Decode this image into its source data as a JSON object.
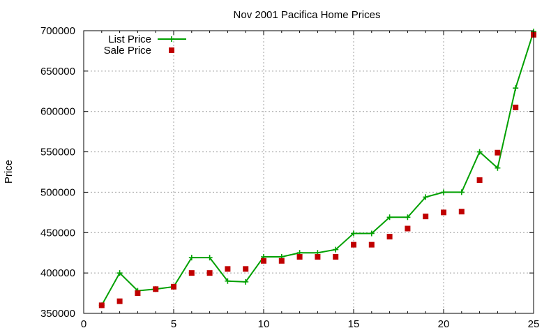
{
  "chart_data": {
    "type": "line",
    "title": "Nov 2001 Pacifica Home Prices",
    "xlabel": "",
    "ylabel": "Price",
    "xlim": [
      0,
      25
    ],
    "ylim": [
      350000,
      700000
    ],
    "x_ticks": [
      "0",
      "5",
      "10",
      "15",
      "20",
      "25"
    ],
    "y_ticks": [
      "350000",
      "400000",
      "450000",
      "500000",
      "550000",
      "600000",
      "650000",
      "700000"
    ],
    "grid": true,
    "legend_position": "top-left",
    "x": [
      1,
      2,
      3,
      4,
      5,
      6,
      7,
      8,
      9,
      10,
      11,
      12,
      13,
      14,
      15,
      16,
      17,
      18,
      19,
      20,
      21,
      22,
      23,
      24,
      25
    ],
    "series": [
      {
        "name": "List Price",
        "style": "lines+markers",
        "marker": "plus",
        "color": "#00a000",
        "values": [
          360000,
          400000,
          378000,
          380000,
          383000,
          419000,
          419000,
          390000,
          389000,
          420000,
          420000,
          425000,
          425000,
          429000,
          449000,
          449000,
          469000,
          469000,
          494000,
          500000,
          500000,
          550000,
          530000,
          629000,
          699000
        ]
      },
      {
        "name": "Sale Price",
        "style": "markers",
        "marker": "square",
        "color": "#c00000",
        "values": [
          360000,
          365000,
          375000,
          380000,
          383000,
          400000,
          400000,
          405000,
          405000,
          415000,
          415000,
          420000,
          420000,
          420000,
          435000,
          435000,
          445000,
          455000,
          470000,
          475000,
          476000,
          515000,
          549000,
          605000,
          695000
        ]
      }
    ]
  }
}
